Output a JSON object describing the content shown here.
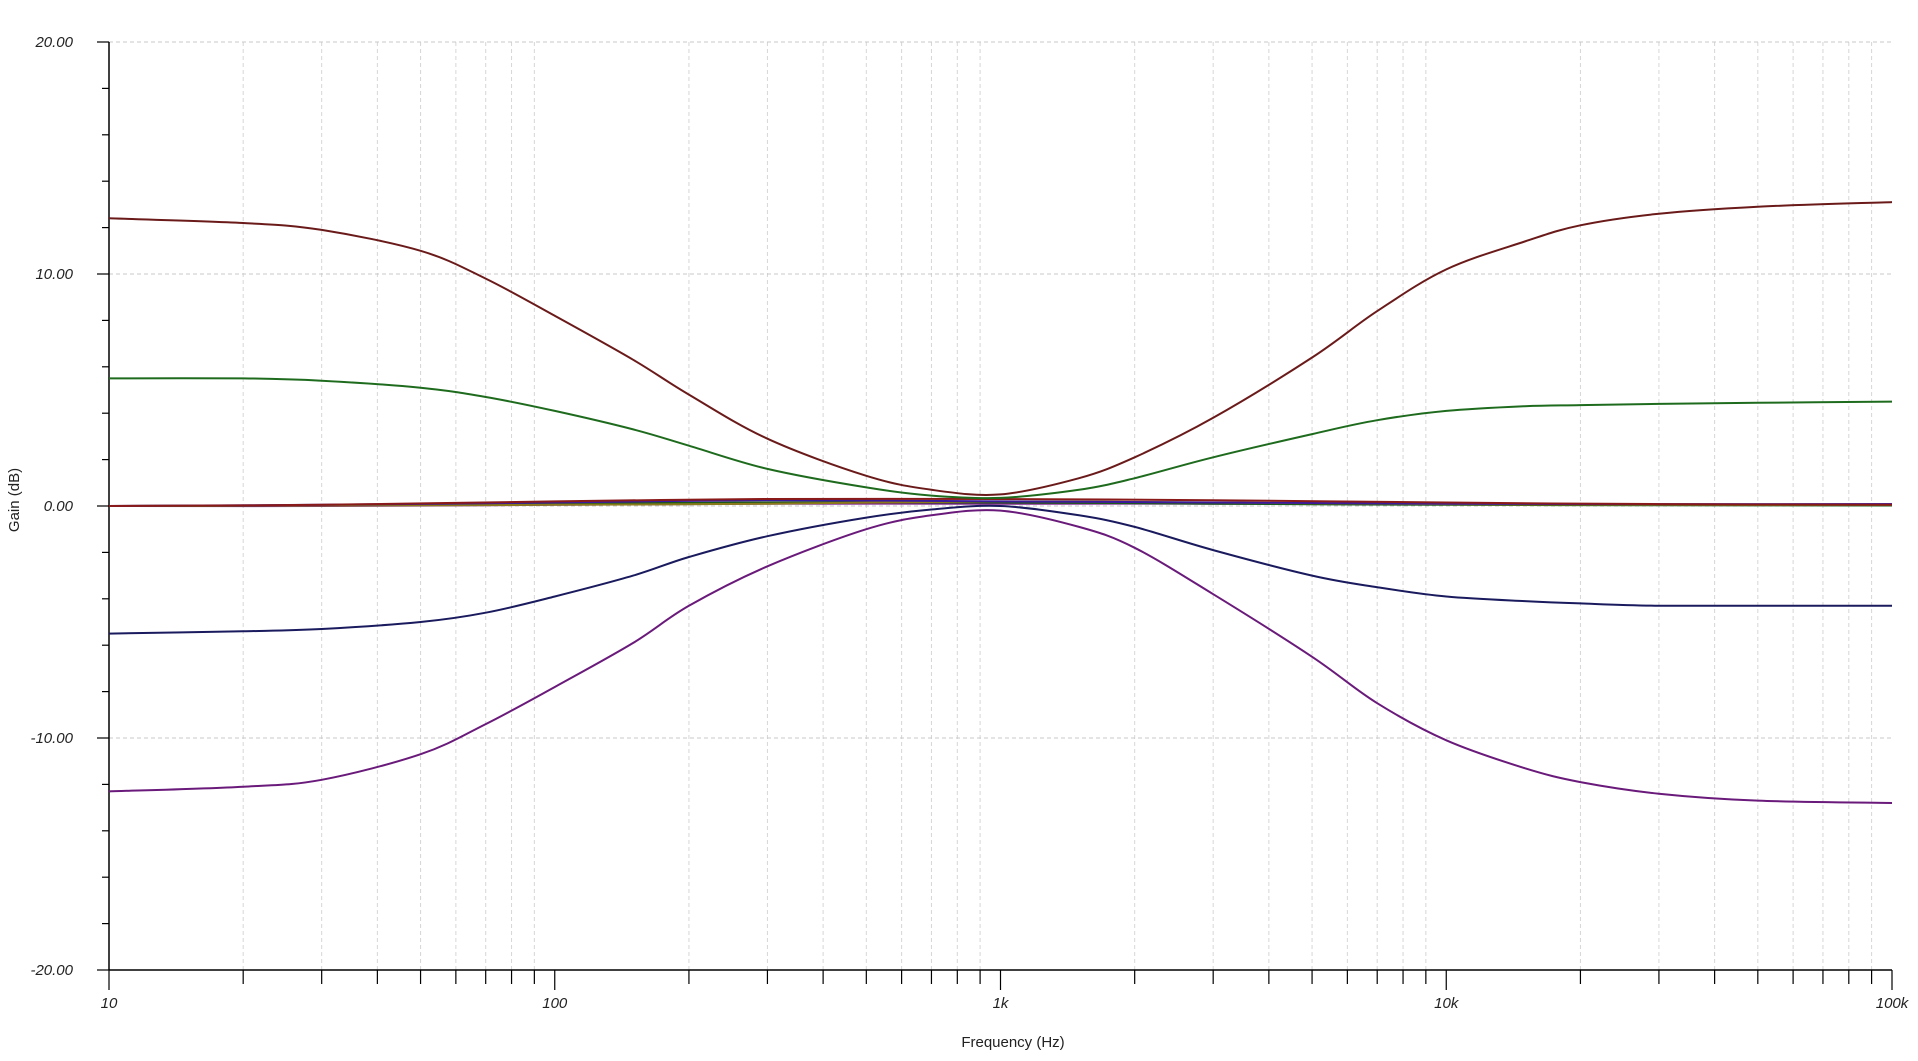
{
  "chart_data": {
    "type": "line",
    "title": "",
    "xlabel": "Frequency (Hz)",
    "ylabel": "Gain (dB)",
    "xscale": "log",
    "xlim": [
      10,
      100000
    ],
    "ylim": [
      -20,
      20
    ],
    "grid": true,
    "x_ticks": [
      {
        "value": 10,
        "label": "10"
      },
      {
        "value": 100,
        "label": "100"
      },
      {
        "value": 1000,
        "label": "1k"
      },
      {
        "value": 10000,
        "label": "10k"
      },
      {
        "value": 100000,
        "label": "100k"
      }
    ],
    "y_ticks": [
      {
        "value": 20,
        "label": "20.00"
      },
      {
        "value": 10,
        "label": "10.00"
      },
      {
        "value": 0,
        "label": "0.00"
      },
      {
        "value": -10,
        "label": "-10.00"
      },
      {
        "value": -20,
        "label": "-20.00"
      }
    ],
    "series": [
      {
        "color": "#6b1a1a",
        "x": [
          10,
          20,
          30,
          50,
          70,
          100,
          150,
          200,
          300,
          500,
          700,
          1000,
          1500,
          2000,
          3000,
          5000,
          7000,
          10000,
          15000,
          20000,
          30000,
          50000,
          100000
        ],
        "y": [
          12.4,
          12.2,
          11.9,
          11.0,
          9.8,
          8.2,
          6.3,
          4.8,
          2.9,
          1.3,
          0.7,
          0.5,
          1.2,
          2.1,
          3.8,
          6.4,
          8.4,
          10.2,
          11.4,
          12.1,
          12.6,
          12.9,
          13.1
        ]
      },
      {
        "color": "#1e6b1e",
        "x": [
          10,
          20,
          30,
          50,
          70,
          100,
          150,
          200,
          300,
          500,
          700,
          1000,
          1500,
          2000,
          3000,
          5000,
          7000,
          10000,
          15000,
          20000,
          30000,
          50000,
          100000
        ],
        "y": [
          5.5,
          5.5,
          5.4,
          5.1,
          4.7,
          4.1,
          3.3,
          2.6,
          1.6,
          0.8,
          0.45,
          0.35,
          0.7,
          1.2,
          2.1,
          3.1,
          3.7,
          4.1,
          4.3,
          4.35,
          4.4,
          4.45,
          4.5
        ]
      },
      {
        "color": "#1a1a5e",
        "x": [
          10,
          20,
          30,
          50,
          70,
          100,
          150,
          200,
          300,
          500,
          700,
          1000,
          1500,
          2000,
          3000,
          5000,
          7000,
          10000,
          15000,
          20000,
          30000,
          50000,
          100000
        ],
        "y": [
          -5.5,
          -5.4,
          -5.3,
          -5.0,
          -4.6,
          -3.9,
          -3.0,
          -2.2,
          -1.3,
          -0.5,
          -0.15,
          0.0,
          -0.4,
          -0.9,
          -1.9,
          -3.0,
          -3.5,
          -3.9,
          -4.1,
          -4.2,
          -4.3,
          -4.3,
          -4.3
        ]
      },
      {
        "color": "#6a1a7a",
        "x": [
          10,
          20,
          30,
          50,
          70,
          100,
          150,
          200,
          300,
          500,
          700,
          1000,
          1500,
          2000,
          3000,
          5000,
          7000,
          10000,
          15000,
          20000,
          30000,
          50000,
          100000
        ],
        "y": [
          -12.3,
          -12.1,
          -11.8,
          -10.7,
          -9.4,
          -7.8,
          -5.9,
          -4.3,
          -2.6,
          -1.0,
          -0.4,
          -0.2,
          -0.9,
          -1.8,
          -3.8,
          -6.5,
          -8.5,
          -10.1,
          -11.3,
          -11.9,
          -12.4,
          -12.7,
          -12.8
        ]
      },
      {
        "color": "#8a1a1a",
        "x": [
          10,
          30,
          100,
          300,
          1000,
          3000,
          10000,
          30000,
          100000
        ],
        "y": [
          0.0,
          0.05,
          0.2,
          0.3,
          0.3,
          0.25,
          0.15,
          0.08,
          0.05
        ]
      },
      {
        "color": "#3a1a9a",
        "x": [
          10,
          30,
          100,
          300,
          1000,
          3000,
          10000,
          30000,
          100000
        ],
        "y": [
          0.0,
          0.05,
          0.15,
          0.25,
          0.2,
          0.15,
          0.1,
          0.08,
          0.08
        ]
      },
      {
        "color": "#8a7a1a",
        "x": [
          10,
          30,
          100,
          300,
          1000,
          3000,
          10000,
          30000,
          100000
        ],
        "y": [
          0.0,
          0.02,
          0.05,
          0.1,
          0.2,
          0.15,
          0.08,
          0.05,
          0.05
        ]
      },
      {
        "color": "#1a5a1a",
        "x": [
          10,
          30,
          100,
          300,
          1000,
          3000,
          10000,
          30000,
          100000
        ],
        "y": [
          0.0,
          0.03,
          0.1,
          0.15,
          0.15,
          0.1,
          0.05,
          0.03,
          0.02
        ]
      },
      {
        "color": "#7a1a8a",
        "x": [
          10,
          30,
          100,
          300,
          1000,
          3000,
          10000,
          30000,
          100000
        ],
        "y": [
          0.0,
          0.0,
          0.05,
          0.1,
          0.1,
          0.1,
          0.08,
          0.05,
          0.08
        ]
      }
    ]
  }
}
